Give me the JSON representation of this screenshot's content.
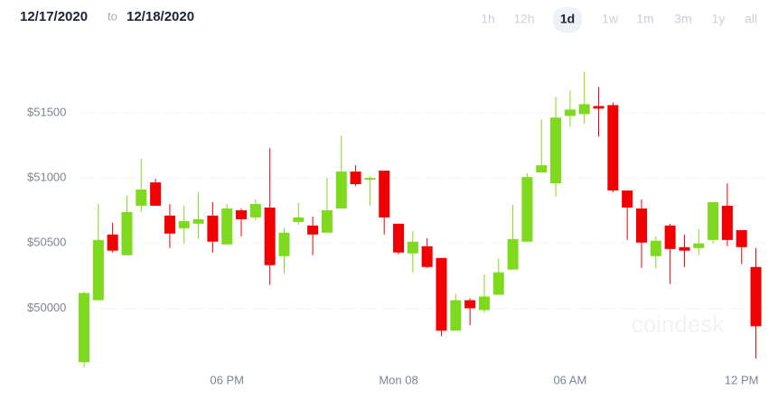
{
  "header": {
    "date_from": "12/17/2020",
    "separator": "to",
    "date_to": "12/18/2020",
    "ranges": [
      "1h",
      "12h",
      "1d",
      "1w",
      "1m",
      "3m",
      "1y",
      "all"
    ],
    "selected_range": 2
  },
  "watermark": "coindesk",
  "chart_data": {
    "type": "candlestick",
    "categories": [
      null,
      null,
      null,
      null,
      null,
      null,
      null,
      null,
      null,
      null,
      "06 PM",
      null,
      null,
      null,
      null,
      null,
      null,
      null,
      null,
      null,
      null,
      null,
      "Mon 08",
      null,
      null,
      null,
      null,
      null,
      null,
      null,
      null,
      null,
      null,
      null,
      "06 AM",
      null,
      null,
      null,
      null,
      null,
      null,
      null,
      null,
      null,
      null,
      null,
      "12 PM",
      null
    ],
    "open": [
      49586,
      50062,
      50566,
      50407,
      50787,
      50966,
      50711,
      50614,
      50649,
      50711,
      50490,
      50752,
      50697,
      50773,
      50400,
      50662,
      50635,
      50580,
      50766,
      51049,
      50987,
      51056,
      50649,
      50421,
      50476,
      50386,
      49828,
      50062,
      49986,
      50104,
      50297,
      50511,
      51042,
      50959,
      51476,
      51490,
      51552,
      51559,
      50904,
      50766,
      50400,
      50635,
      50469,
      50462,
      50524,
      50787,
      50600,
      50317
    ],
    "high": [
      50131,
      50800,
      50655,
      50862,
      51145,
      50994,
      50800,
      50787,
      50890,
      50814,
      50800,
      50766,
      50835,
      51228,
      50614,
      50807,
      50704,
      51000,
      51325,
      51097,
      51014,
      51056,
      50649,
      50593,
      50538,
      50386,
      50110,
      50076,
      50262,
      50380,
      50793,
      51035,
      51449,
      51622,
      51670,
      51815,
      51697,
      51580,
      50904,
      50835,
      50552,
      50649,
      50566,
      50607,
      50814,
      50959,
      50600,
      50462
    ],
    "low": [
      49545,
      50062,
      50428,
      50407,
      50738,
      50787,
      50462,
      50497,
      50531,
      50428,
      50490,
      50552,
      50676,
      50179,
      50269,
      50642,
      50407,
      50580,
      50766,
      50938,
      50787,
      50566,
      50414,
      50276,
      50310,
      49786,
      49828,
      49869,
      49966,
      50104,
      50297,
      50511,
      51042,
      50856,
      51394,
      51414,
      51318,
      50890,
      50524,
      50310,
      50304,
      50186,
      50317,
      50407,
      50497,
      50476,
      50338,
      49614
    ],
    "close": [
      50117,
      50524,
      50442,
      50738,
      50911,
      50787,
      50573,
      50669,
      50683,
      50511,
      50766,
      50683,
      50800,
      50331,
      50580,
      50697,
      50566,
      50752,
      51049,
      50952,
      51000,
      50697,
      50428,
      50511,
      50317,
      49828,
      50062,
      50000,
      50090,
      50276,
      50531,
      51007,
      51097,
      51463,
      51525,
      51566,
      51532,
      50904,
      50773,
      50504,
      50518,
      50455,
      50442,
      50497,
      50814,
      50524,
      50469,
      49862
    ],
    "up_color": "#7fd91f",
    "down_color": "#f00000",
    "ylim": [
      49560,
      51950
    ],
    "yticks": [
      {
        "value": 50000,
        "label": "$50000"
      },
      {
        "value": 50500,
        "label": "$50500"
      },
      {
        "value": 51000,
        "label": "$51000"
      },
      {
        "value": 51500,
        "label": "$51500"
      }
    ],
    "grid": true
  }
}
